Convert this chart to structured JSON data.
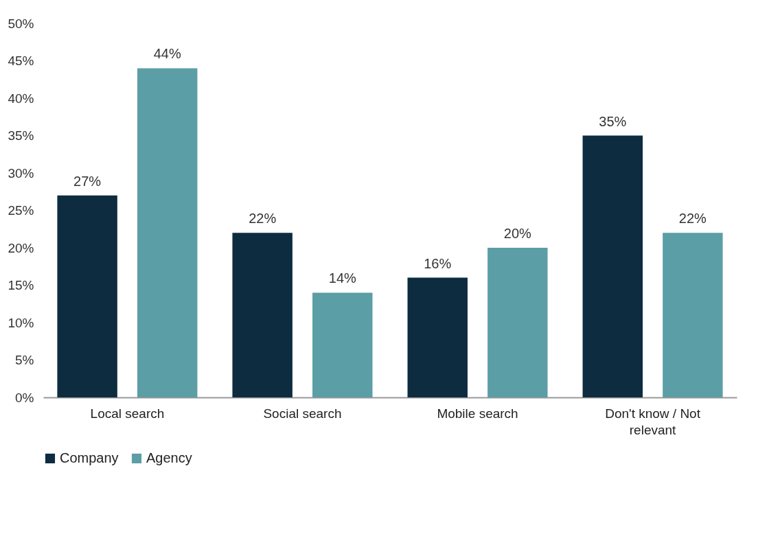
{
  "chart_data": {
    "type": "bar",
    "categories": [
      "Local search",
      "Social search",
      "Mobile search",
      "Don't know / Not relevant"
    ],
    "series": [
      {
        "name": "Company",
        "color": "#0d2c40",
        "values": [
          27,
          22,
          16,
          35
        ],
        "value_labels": [
          "27%",
          "22%",
          "16%",
          "35%"
        ]
      },
      {
        "name": "Agency",
        "color": "#5b9ea6",
        "values": [
          44,
          14,
          20,
          22
        ],
        "value_labels": [
          "44%",
          "14%",
          "20%",
          "22%"
        ]
      }
    ],
    "ylim": [
      0,
      50
    ],
    "yticks": [
      {
        "value": 0,
        "label": "0%"
      },
      {
        "value": 5,
        "label": "5%"
      },
      {
        "value": 10,
        "label": "10%"
      },
      {
        "value": 15,
        "label": "15%"
      },
      {
        "value": 20,
        "label": "20%"
      },
      {
        "value": 25,
        "label": "25%"
      },
      {
        "value": 30,
        "label": "30%"
      },
      {
        "value": 35,
        "label": "35%"
      },
      {
        "value": 40,
        "label": "40%"
      },
      {
        "value": 45,
        "label": "45%"
      },
      {
        "value": 50,
        "label": "50%"
      }
    ],
    "grid": false,
    "legend": "bottom"
  }
}
